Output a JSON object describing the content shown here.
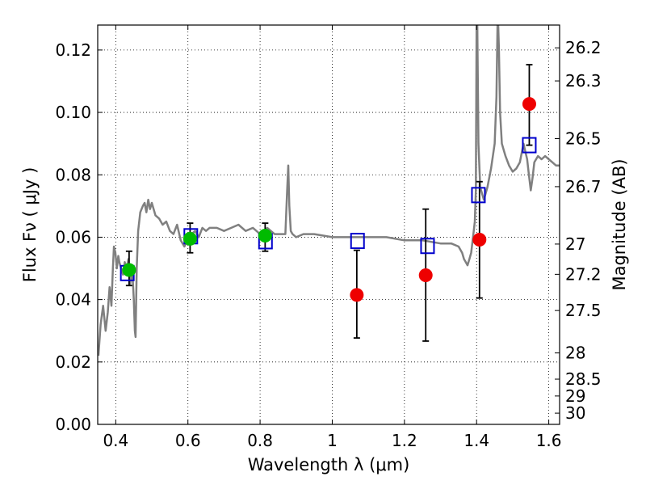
{
  "chart_data": {
    "type": "scatter",
    "xlabel": "Wavelength  λ (μm)",
    "ylabel": "Flux  Fν  ( μJy )",
    "y2label": "Magnitude (AB)",
    "xlim": [
      0.35,
      1.63
    ],
    "ylim": [
      0.0,
      0.128
    ],
    "grid": true,
    "x_ticks": [
      0.4,
      0.6,
      0.8,
      1.0,
      1.2,
      1.4,
      1.6
    ],
    "x_tick_labels": [
      "0.4",
      "0.6",
      "0.8",
      "1",
      "1.2",
      "1.4",
      "1.6"
    ],
    "y_ticks": [
      0.0,
      0.02,
      0.04,
      0.06,
      0.08,
      0.1,
      0.12
    ],
    "y_tick_labels": [
      "0.00",
      "0.02",
      "0.04",
      "0.06",
      "0.08",
      "0.10",
      "0.12"
    ],
    "mag_ticks": [
      {
        "label": "26.2",
        "flux": 0.1207
      },
      {
        "label": "26.3",
        "flux": 0.1101
      },
      {
        "label": "26.5",
        "flux": 0.0916
      },
      {
        "label": "26.7",
        "flux": 0.0762
      },
      {
        "label": "27",
        "flux": 0.0578
      },
      {
        "label": "27.2",
        "flux": 0.0481
      },
      {
        "label": "27.5",
        "flux": 0.0365
      },
      {
        "label": "28",
        "flux": 0.0229
      },
      {
        "label": "28.5",
        "flux": 0.0145
      },
      {
        "label": "29",
        "flux": 0.0091
      },
      {
        "label": "30",
        "flux": 0.0036
      }
    ],
    "series": [
      {
        "name": "model SED",
        "kind": "line",
        "color": "#808080",
        "x": [
          0.352,
          0.358,
          0.365,
          0.372,
          0.378,
          0.383,
          0.388,
          0.392,
          0.395,
          0.399,
          0.403,
          0.407,
          0.41,
          0.415,
          0.42,
          0.425,
          0.43,
          0.435,
          0.44,
          0.445,
          0.45,
          0.453,
          0.455,
          0.458,
          0.462,
          0.468,
          0.475,
          0.48,
          0.485,
          0.49,
          0.495,
          0.5,
          0.51,
          0.52,
          0.53,
          0.54,
          0.55,
          0.56,
          0.57,
          0.58,
          0.59,
          0.6,
          0.61,
          0.62,
          0.63,
          0.64,
          0.65,
          0.66,
          0.68,
          0.7,
          0.72,
          0.74,
          0.76,
          0.78,
          0.8,
          0.82,
          0.84,
          0.86,
          0.87,
          0.875,
          0.878,
          0.881,
          0.885,
          0.89,
          0.9,
          0.92,
          0.95,
          1.0,
          1.05,
          1.1,
          1.15,
          1.2,
          1.25,
          1.3,
          1.33,
          1.35,
          1.36,
          1.365,
          1.37,
          1.375,
          1.38,
          1.385,
          1.39,
          1.395,
          1.398,
          1.4,
          1.402,
          1.405,
          1.41,
          1.42,
          1.43,
          1.44,
          1.45,
          1.455,
          1.458,
          1.46,
          1.462,
          1.465,
          1.47,
          1.48,
          1.49,
          1.5,
          1.51,
          1.52,
          1.53,
          1.54,
          1.545,
          1.55,
          1.555,
          1.56,
          1.57,
          1.58,
          1.59,
          1.6,
          1.61,
          1.62,
          1.63
        ],
        "y": [
          0.022,
          0.032,
          0.038,
          0.03,
          0.036,
          0.044,
          0.038,
          0.05,
          0.057,
          0.055,
          0.05,
          0.054,
          0.052,
          0.05,
          0.048,
          0.052,
          0.05,
          0.053,
          0.045,
          0.051,
          0.04,
          0.03,
          0.028,
          0.05,
          0.062,
          0.068,
          0.07,
          0.071,
          0.068,
          0.072,
          0.069,
          0.071,
          0.067,
          0.066,
          0.064,
          0.065,
          0.062,
          0.061,
          0.064,
          0.059,
          0.057,
          0.059,
          0.061,
          0.062,
          0.06,
          0.063,
          0.062,
          0.063,
          0.063,
          0.062,
          0.063,
          0.064,
          0.062,
          0.063,
          0.061,
          0.063,
          0.061,
          0.061,
          0.061,
          0.075,
          0.083,
          0.07,
          0.062,
          0.061,
          0.06,
          0.061,
          0.061,
          0.06,
          0.06,
          0.06,
          0.06,
          0.059,
          0.059,
          0.058,
          0.058,
          0.057,
          0.055,
          0.053,
          0.052,
          0.051,
          0.053,
          0.055,
          0.06,
          0.065,
          0.075,
          0.128,
          0.128,
          0.09,
          0.076,
          0.072,
          0.076,
          0.082,
          0.09,
          0.105,
          0.128,
          0.128,
          0.12,
          0.1,
          0.09,
          0.086,
          0.083,
          0.081,
          0.082,
          0.084,
          0.09,
          0.085,
          0.08,
          0.075,
          0.079,
          0.084,
          0.086,
          0.085,
          0.086,
          0.085,
          0.084,
          0.083,
          0.083
        ]
      },
      {
        "name": "green points",
        "kind": "points",
        "marker": "circle",
        "color": "#00bb00",
        "x": [
          0.437,
          0.606,
          0.814
        ],
        "y": [
          0.0495,
          0.0595,
          0.0605
        ],
        "yerr_low": [
          0.0445,
          0.055,
          0.0555
        ],
        "yerr_high": [
          0.0555,
          0.0645,
          0.0645
        ]
      },
      {
        "name": "red points",
        "kind": "points",
        "marker": "circle",
        "color": "#ee0000",
        "x": [
          1.068,
          1.259,
          1.408,
          1.546
        ],
        "y": [
          0.0415,
          0.0478,
          0.0592,
          0.1027
        ],
        "yerr_low": [
          0.0277,
          0.0267,
          0.0405,
          0.0895
        ],
        "yerr_high": [
          0.0558,
          0.069,
          0.0778,
          0.1153
        ]
      },
      {
        "name": "model photometry",
        "kind": "points",
        "marker": "open-square",
        "color": "#0000cc",
        "x": [
          0.432,
          0.608,
          0.815,
          1.07,
          1.264,
          1.405,
          1.546
        ],
        "y": [
          0.0485,
          0.0603,
          0.0587,
          0.0588,
          0.0572,
          0.0735,
          0.0895
        ]
      }
    ]
  }
}
